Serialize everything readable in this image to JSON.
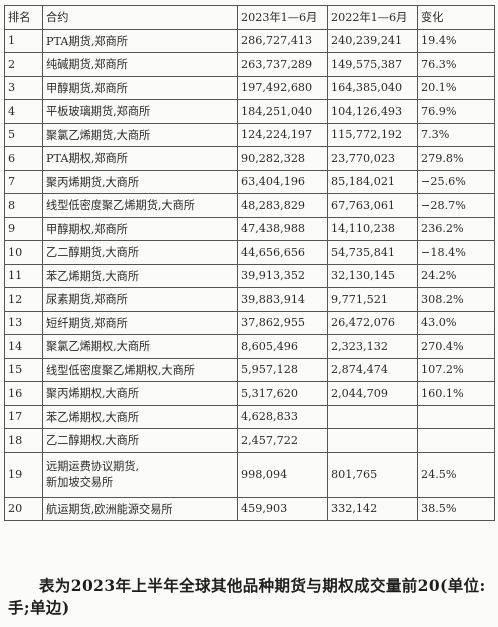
{
  "table": {
    "headers": [
      "排名",
      "合约",
      "2023年1—6月",
      "2022年1—6月",
      "变化"
    ],
    "rows": [
      {
        "rank": "1",
        "name": "PTA期货,郑商所",
        "y2023": "286,727,413",
        "y2022": "240,239,241",
        "change": "19.4%"
      },
      {
        "rank": "2",
        "name": "纯碱期货,郑商所",
        "y2023": "263,737,289",
        "y2022": "149,575,387",
        "change": "76.3%"
      },
      {
        "rank": "3",
        "name": "甲醇期货,郑商所",
        "y2023": "197,492,680",
        "y2022": "164,385,040",
        "change": "20.1%"
      },
      {
        "rank": "4",
        "name": "平板玻璃期货,郑商所",
        "y2023": "184,251,040",
        "y2022": "104,126,493",
        "change": "76.9%"
      },
      {
        "rank": "5",
        "name": "聚氯乙烯期货,大商所",
        "y2023": "124,224,197",
        "y2022": "115,772,192",
        "change": "7.3%"
      },
      {
        "rank": "6",
        "name": "PTA期权,郑商所",
        "y2023": "90,282,328",
        "y2022": "23,770,023",
        "change": "279.8%"
      },
      {
        "rank": "7",
        "name": "聚丙烯期货,大商所",
        "y2023": "63,404,196",
        "y2022": "85,184,021",
        "change": "−25.6%"
      },
      {
        "rank": "8",
        "name": "线型低密度聚乙烯期货,大商所",
        "y2023": "48,283,829",
        "y2022": "67,763,061",
        "change": "−28.7%"
      },
      {
        "rank": "9",
        "name": "甲醇期权,郑商所",
        "y2023": "47,438,988",
        "y2022": "14,110,238",
        "change": "236.2%"
      },
      {
        "rank": "10",
        "name": "乙二醇期货,大商所",
        "y2023": "44,656,656",
        "y2022": "54,735,841",
        "change": "−18.4%"
      },
      {
        "rank": "11",
        "name": "苯乙烯期货,大商所",
        "y2023": "39,913,352",
        "y2022": "32,130,145",
        "change": "24.2%"
      },
      {
        "rank": "12",
        "name": "尿素期货,郑商所",
        "y2023": "39,883,914",
        "y2022": "9,771,521",
        "change": "308.2%"
      },
      {
        "rank": "13",
        "name": "短纤期货,郑商所",
        "y2023": "37,862,955",
        "y2022": "26,472,076",
        "change": "43.0%"
      },
      {
        "rank": "14",
        "name": "聚氯乙烯期权,大商所",
        "y2023": "8,605,496",
        "y2022": "2,323,132",
        "change": "270.4%"
      },
      {
        "rank": "15",
        "name": "线型低密度聚乙烯期权,大商所",
        "y2023": "5,957,128",
        "y2022": "2,874,474",
        "change": "107.2%"
      },
      {
        "rank": "16",
        "name": "聚丙烯期权,大商所",
        "y2023": "5,317,620",
        "y2022": "2,044,709",
        "change": "160.1%"
      },
      {
        "rank": "17",
        "name": "苯乙烯期权,大商所",
        "y2023": "4,628,833",
        "y2022": "",
        "change": ""
      },
      {
        "rank": "18",
        "name": "乙二醇期权,大商所",
        "y2023": "2,457,722",
        "y2022": "",
        "change": ""
      },
      {
        "rank": "19",
        "name": "远期运费协议期货,\n新加坡交易所",
        "y2023": "998,094",
        "y2022": "801,765",
        "change": "24.5%"
      },
      {
        "rank": "20",
        "name": "航运期货,欧洲能源交易所",
        "y2023": "459,903",
        "y2022": "332,142",
        "change": "38.5%"
      }
    ]
  },
  "caption": "表为2023年上半年全球其他品种期货与期权成交量前20(单位:手;单边)"
}
